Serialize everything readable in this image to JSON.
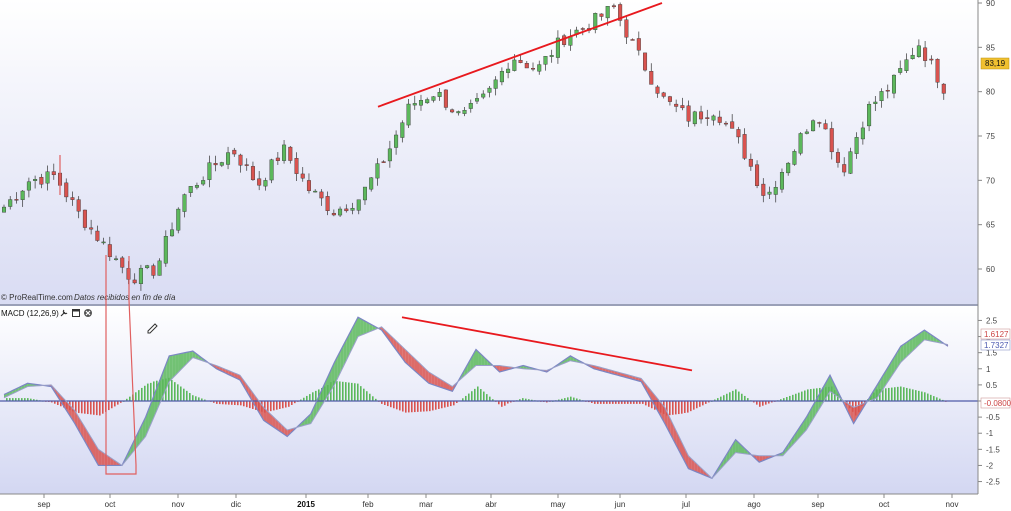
{
  "source": {
    "brand": "© ProRealTime.com",
    "note": "Datos recibidos en fin de día"
  },
  "colors": {
    "up": "#5cb85c",
    "down": "#d9534f",
    "trend": "#e8191e",
    "zero_line": "#4f5aa8",
    "macd_line": "#7b86c4",
    "signal_line": "#9aa0c9",
    "price_tag_bg": "#f0c030"
  },
  "icons": [
    "wrench-icon",
    "window-icon",
    "close-icon",
    "pencil-icon"
  ],
  "chart_data": [
    {
      "type": "candlestick",
      "title": "",
      "x_ticks": [
        "sep",
        "oct",
        "nov",
        "dic",
        "2015",
        "feb",
        "mar",
        "abr",
        "may",
        "jun",
        "jul",
        "ago",
        "sep",
        "oct",
        "nov"
      ],
      "y_ticks": [
        60,
        65,
        70,
        75,
        80,
        85,
        90
      ],
      "ylim": [
        55,
        90
      ],
      "last_price_label": "83,19",
      "waypoints": [
        {
          "x": "early sep",
          "close": 67.0
        },
        {
          "x": "sep",
          "close": 70.0
        },
        {
          "x": "mid sep",
          "close": 70.5
        },
        {
          "x": "late sep",
          "close": 66.0
        },
        {
          "x": "early oct",
          "close": 62.5
        },
        {
          "x": "mid oct",
          "close": 59.0
        },
        {
          "x": "late oct",
          "close": 60.0
        },
        {
          "x": "nov",
          "close": 68.0
        },
        {
          "x": "mid nov",
          "close": 71.0
        },
        {
          "x": "dic",
          "close": 73.5
        },
        {
          "x": "mid dic",
          "close": 69.5
        },
        {
          "x": "late dic",
          "close": 73.5
        },
        {
          "x": "2015",
          "close": 69.0
        },
        {
          "x": "mid ene",
          "close": 66.5
        },
        {
          "x": "late ene",
          "close": 68.0
        },
        {
          "x": "feb",
          "close": 72.5
        },
        {
          "x": "mid feb",
          "close": 78.5
        },
        {
          "x": "mar",
          "close": 80.0
        },
        {
          "x": "mid mar",
          "close": 77.0
        },
        {
          "x": "abr",
          "close": 79.5
        },
        {
          "x": "mid abr",
          "close": 84.0
        },
        {
          "x": "may",
          "close": 82.5
        },
        {
          "x": "mid may",
          "close": 86.0
        },
        {
          "x": "jun",
          "close": 87.5
        },
        {
          "x": "late jun",
          "close": 89.5
        },
        {
          "x": "jul",
          "close": 84.0
        },
        {
          "x": "early jul",
          "close": 79.0
        },
        {
          "x": "mid jul",
          "close": 77.0
        },
        {
          "x": "ago",
          "close": 78.0
        },
        {
          "x": "mid ago",
          "close": 74.0
        },
        {
          "x": "late ago",
          "close": 68.0
        },
        {
          "x": "sep",
          "close": 73.0
        },
        {
          "x": "mid sep",
          "close": 78.0
        },
        {
          "x": "late sep",
          "close": 71.0
        },
        {
          "x": "oct",
          "close": 78.0
        },
        {
          "x": "mid oct",
          "close": 81.0
        },
        {
          "x": "late oct",
          "close": 85.5
        },
        {
          "x": "nov",
          "close": 80.5
        }
      ]
    },
    {
      "type": "area",
      "name": "MACD (12,26,9)",
      "x_ticks": [
        "sep",
        "oct",
        "nov",
        "dic",
        "2015",
        "feb",
        "mar",
        "abr",
        "may",
        "jun",
        "jul",
        "ago",
        "sep",
        "oct",
        "nov"
      ],
      "y_ticks": [
        "2.5",
        "2",
        "1.5",
        "1",
        "0.5",
        "0",
        "-0.5",
        "-1",
        "-1.5",
        "-2",
        "-2.5"
      ],
      "ylim": [
        -2.7,
        2.7
      ],
      "value_labels": [
        "1.6127",
        "1.7327",
        "-0.0800"
      ],
      "macd": [
        0.2,
        0.55,
        0.45,
        -0.7,
        -2.0,
        -2.0,
        -0.5,
        1.4,
        1.55,
        1.0,
        0.65,
        -0.6,
        -1.1,
        -0.4,
        1.2,
        2.6,
        2.2,
        1.2,
        0.55,
        0.3,
        1.6,
        0.9,
        1.1,
        0.9,
        1.4,
        1.0,
        0.8,
        0.6,
        -0.7,
        -2.1,
        -2.4,
        -1.2,
        -1.9,
        -1.6,
        -0.5,
        0.8,
        -0.7,
        0.5,
        1.7,
        2.2,
        1.7
      ],
      "signal": [
        0.1,
        0.45,
        0.5,
        -0.3,
        -1.5,
        -2.0,
        -1.1,
        0.6,
        1.35,
        1.1,
        0.8,
        -0.2,
        -0.9,
        -0.7,
        0.5,
        2.0,
        2.3,
        1.6,
        0.9,
        0.45,
        1.1,
        1.1,
        1.0,
        0.95,
        1.25,
        1.1,
        0.9,
        0.7,
        -0.2,
        -1.7,
        -2.4,
        -1.6,
        -1.7,
        -1.7,
        -0.9,
        0.3,
        -0.2,
        0.1,
        1.2,
        1.9,
        1.75
      ]
    }
  ]
}
